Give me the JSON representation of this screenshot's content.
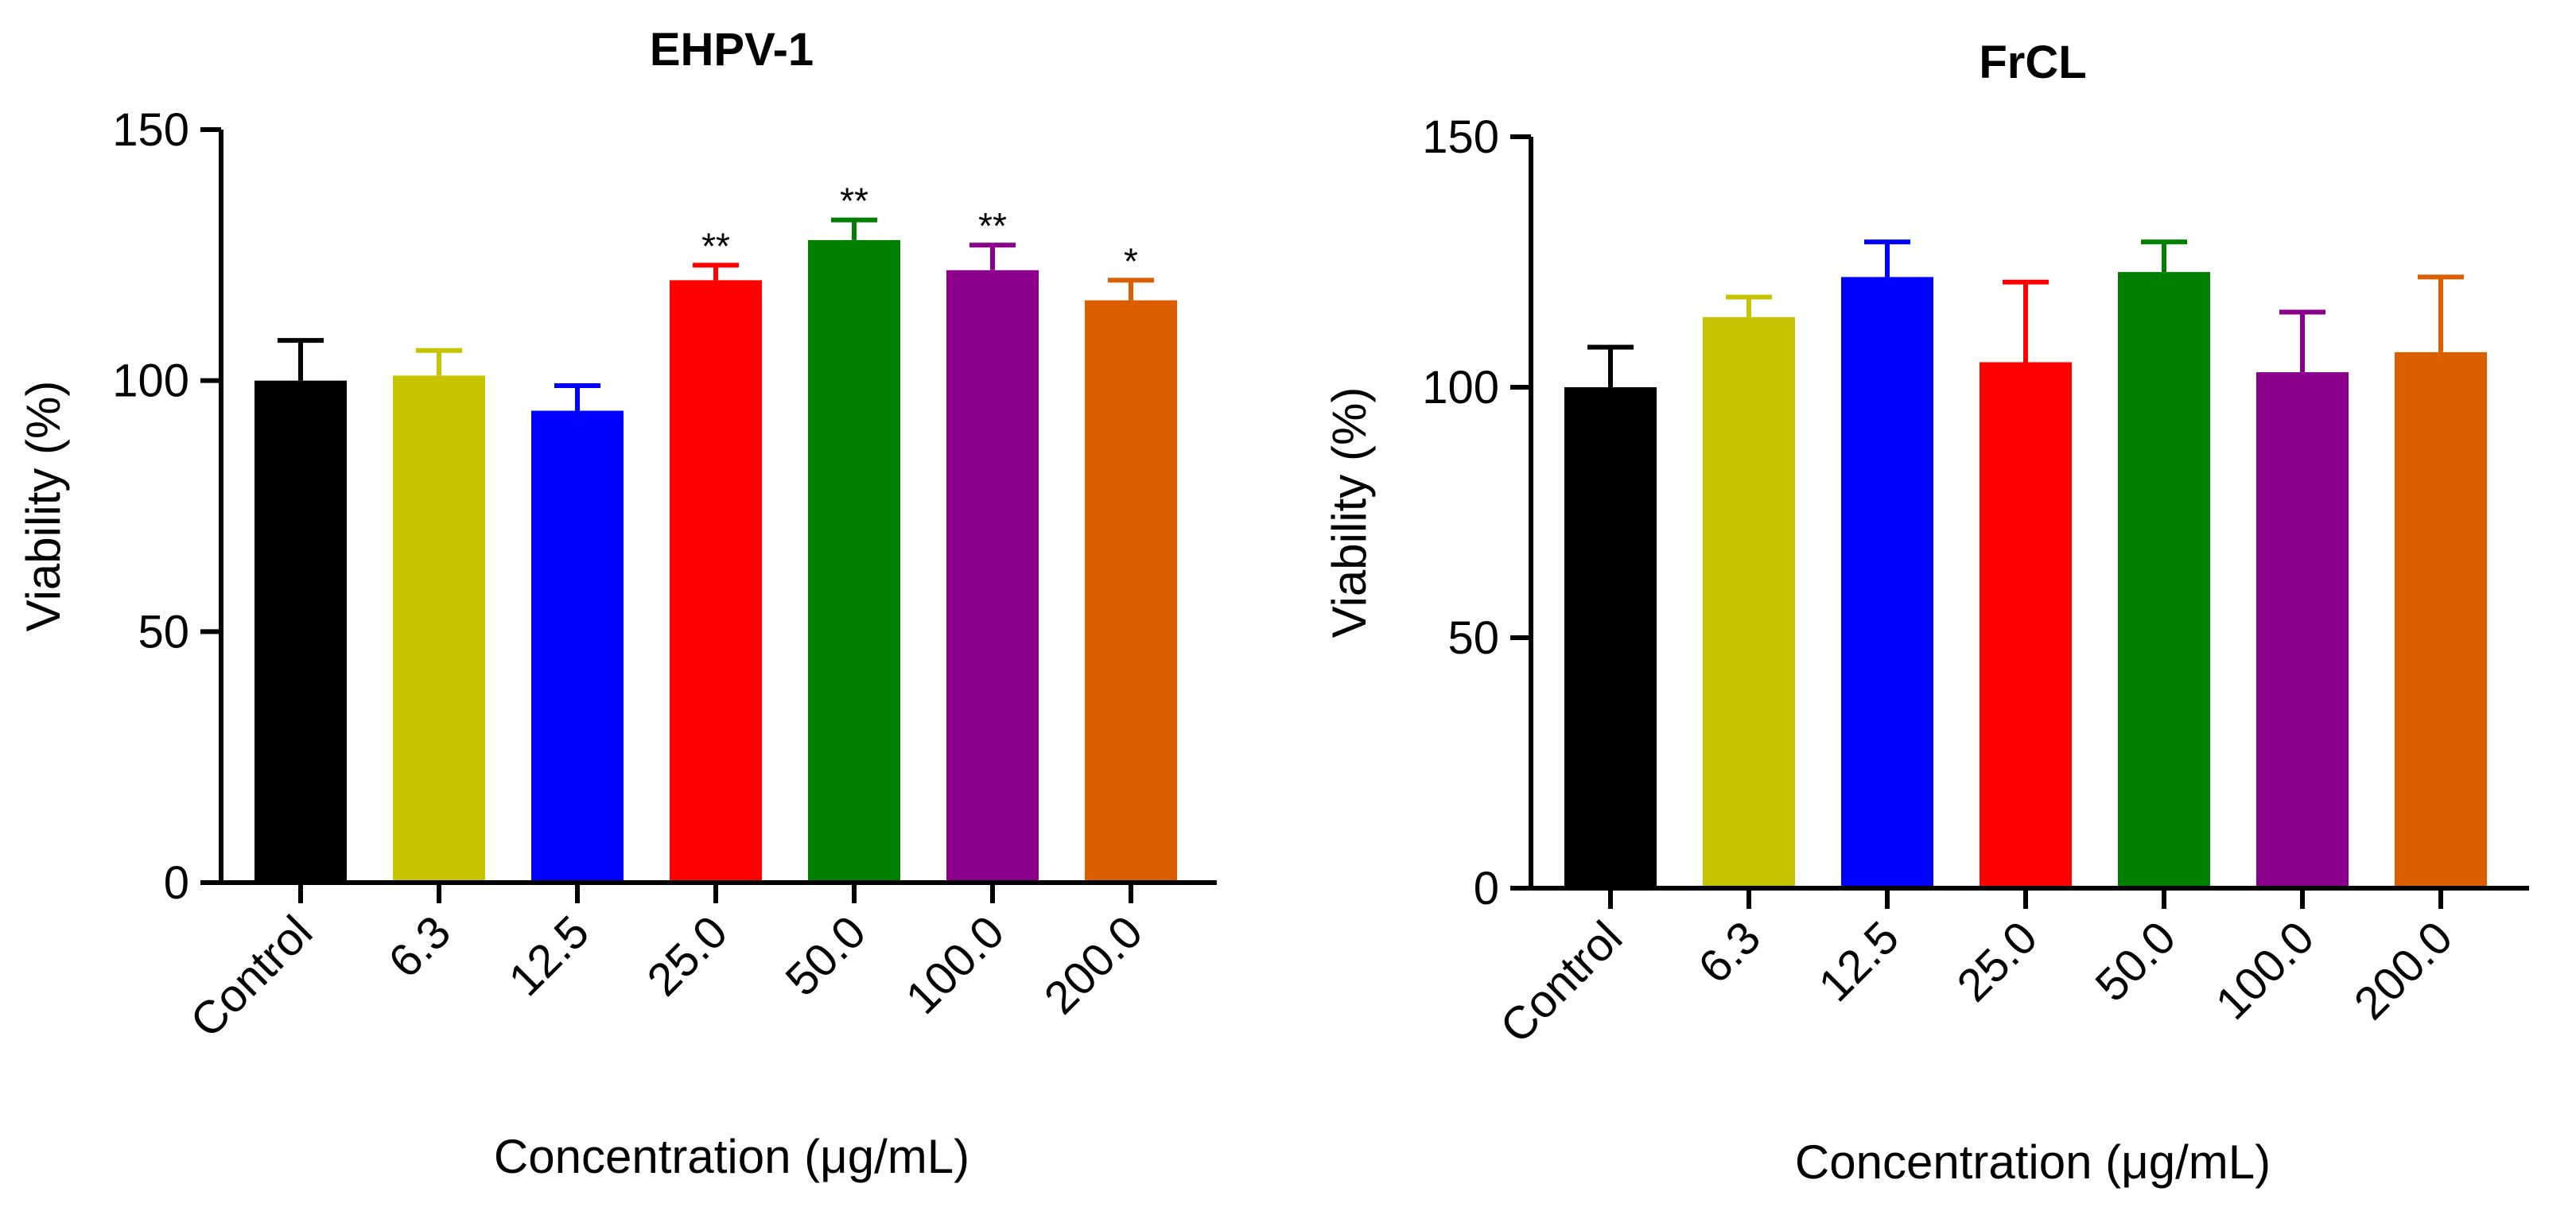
{
  "figure": {
    "colors": {
      "Control": "#000000",
      "6.3": "#c6c300",
      "12.5": "#0000ff",
      "25.0": "#ff0000",
      "50.0": "#008000",
      "100.0": "#8b008b",
      "200.0": "#db5f00"
    }
  },
  "chart_data": [
    {
      "type": "bar",
      "title": "EHPV-1",
      "xlabel": "Concentration (μg/mL)",
      "ylabel": "Viability (%)",
      "ylim": [
        0,
        150
      ],
      "yticks": [
        0,
        50,
        100,
        150
      ],
      "categories": [
        "Control",
        "6.3",
        "12.5",
        "25.0",
        "50.0",
        "100.0",
        "200.0"
      ],
      "values": [
        100,
        101,
        94,
        120,
        128,
        122,
        116
      ],
      "errors": [
        8,
        5,
        5,
        3,
        4,
        5,
        4
      ],
      "significance": [
        "",
        "",
        "",
        "**",
        "**",
        "**",
        "*"
      ]
    },
    {
      "type": "bar",
      "title": "FrCL",
      "xlabel": "Concentration (μg/mL)",
      "ylabel": "Viability (%)",
      "ylim": [
        0,
        150
      ],
      "yticks": [
        0,
        50,
        100,
        150
      ],
      "categories": [
        "Control",
        "6.3",
        "12.5",
        "25.0",
        "50.0",
        "100.0",
        "200.0"
      ],
      "values": [
        100,
        114,
        122,
        105,
        123,
        103,
        107
      ],
      "errors": [
        8,
        4,
        7,
        16,
        6,
        12,
        15
      ],
      "significance": [
        "",
        "",
        "",
        "",
        "",
        "",
        ""
      ]
    }
  ]
}
